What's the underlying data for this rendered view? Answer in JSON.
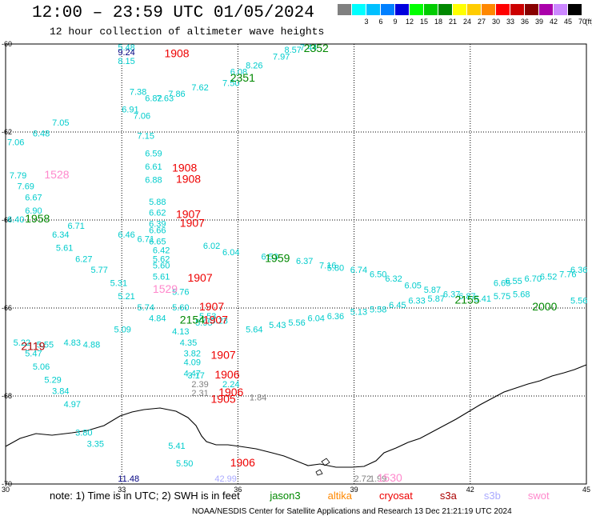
{
  "title": "12:00 – 23:59 UTC 01/05/2024",
  "subtitle": "12 hour collection of altimeter wave heights",
  "note": {
    "prefix": "note:  1) Time is in UTC; 2) SWH is in feet",
    "sats": [
      {
        "name": "jason3",
        "color": "#008800"
      },
      {
        "name": "altika",
        "color": "#ff8800"
      },
      {
        "name": "cryosat",
        "color": "#ee0000"
      },
      {
        "name": "s3a",
        "color": "#aa0000"
      },
      {
        "name": "s3b",
        "color": "#aaaaff"
      },
      {
        "name": "swot",
        "color": "#ff88cc"
      }
    ]
  },
  "footer": "NOAA/NESDIS Center for Satellite Applications and Research   13 Dec 21:21:19 UTC 2024",
  "legend": {
    "unit": "(ft)",
    "items": [
      {
        "label": "",
        "color": "#808080"
      },
      {
        "label": "3",
        "color": "#00ffff"
      },
      {
        "label": "6",
        "color": "#00c0ff"
      },
      {
        "label": "9",
        "color": "#0080ff"
      },
      {
        "label": "12",
        "color": "#0000dd"
      },
      {
        "label": "15",
        "color": "#00ff00"
      },
      {
        "label": "18",
        "color": "#00cc00"
      },
      {
        "label": "21",
        "color": "#008800"
      },
      {
        "label": "24",
        "color": "#ffff00"
      },
      {
        "label": "27",
        "color": "#ffcc00"
      },
      {
        "label": "30",
        "color": "#ff8800"
      },
      {
        "label": "33",
        "color": "#ff0000"
      },
      {
        "label": "36",
        "color": "#cc0000"
      },
      {
        "label": "39",
        "color": "#880000"
      },
      {
        "label": "42",
        "color": "#aa00aa"
      },
      {
        "label": "45",
        "color": "#cc88ff"
      },
      {
        "label": "70",
        "color": "#000000"
      }
    ]
  },
  "axes": {
    "lon_ticks": [
      "30",
      "33",
      "36",
      "39",
      "42",
      "45"
    ],
    "lat_ticks": [
      "-60",
      "-62",
      "-64",
      "-66",
      "-68",
      "-70"
    ]
  },
  "chart_data": {
    "type": "scatter",
    "x_range": [
      30,
      45
    ],
    "y_range": [
      -70,
      -60
    ],
    "swh_labels": [
      {
        "lon": 32.9,
        "lat": -60.08,
        "text": "5.48",
        "color": "#00cccc"
      },
      {
        "lon": 32.9,
        "lat": -60.25,
        "text": "9.24",
        "color": "#000080"
      },
      {
        "lon": 32.9,
        "lat": -60.45,
        "text": "8.15",
        "color": "#00cccc"
      },
      {
        "lon": 33.2,
        "lat": -61.15,
        "text": "7.38",
        "color": "#00cccc"
      },
      {
        "lon": 33.6,
        "lat": -61.3,
        "text": "6.82",
        "color": "#00cccc"
      },
      {
        "lon": 33.0,
        "lat": -61.55,
        "text": "6.91",
        "color": "#00cccc"
      },
      {
        "lon": 33.3,
        "lat": -61.7,
        "text": "7.06",
        "color": "#00cccc"
      },
      {
        "lon": 33.4,
        "lat": -62.15,
        "text": "7.15",
        "color": "#00cccc"
      },
      {
        "lon": 31.2,
        "lat": -61.85,
        "text": "7.05",
        "color": "#00cccc"
      },
      {
        "lon": 30.7,
        "lat": -62.1,
        "text": "6.48",
        "color": "#00cccc"
      },
      {
        "lon": 30.0,
        "lat": -62.3,
        "text": "7.06",
        "color": "#00cccc"
      },
      {
        "lon": 30.1,
        "lat": -63.05,
        "text": "7.79",
        "color": "#00cccc"
      },
      {
        "lon": 30.3,
        "lat": -63.3,
        "text": "7.69",
        "color": "#00cccc"
      },
      {
        "lon": 30.5,
        "lat": -63.55,
        "text": "6.67",
        "color": "#00cccc"
      },
      {
        "lon": 30.5,
        "lat": -63.85,
        "text": "6.90",
        "color": "#00cccc"
      },
      {
        "lon": 30.0,
        "lat": -64.05,
        "text": "6.40",
        "color": "#00cccc"
      },
      {
        "lon": 31.6,
        "lat": -64.2,
        "text": "6.71",
        "color": "#00cccc"
      },
      {
        "lon": 31.2,
        "lat": -64.4,
        "text": "6.34",
        "color": "#00cccc"
      },
      {
        "lon": 31.3,
        "lat": -64.7,
        "text": "5.61",
        "color": "#00cccc"
      },
      {
        "lon": 31.8,
        "lat": -64.95,
        "text": "6.27",
        "color": "#00cccc"
      },
      {
        "lon": 32.2,
        "lat": -65.2,
        "text": "5.77",
        "color": "#00cccc"
      },
      {
        "lon": 32.7,
        "lat": -65.5,
        "text": "5.31",
        "color": "#00cccc"
      },
      {
        "lon": 32.9,
        "lat": -64.4,
        "text": "6.46",
        "color": "#00cccc"
      },
      {
        "lon": 33.4,
        "lat": -64.5,
        "text": "6.71",
        "color": "#00cccc"
      },
      {
        "lon": 32.9,
        "lat": -65.8,
        "text": "5.21",
        "color": "#00cccc"
      },
      {
        "lon": 33.4,
        "lat": -66.05,
        "text": "5.74",
        "color": "#00cccc"
      },
      {
        "lon": 33.7,
        "lat": -66.3,
        "text": "4.84",
        "color": "#00cccc"
      },
      {
        "lon": 32.8,
        "lat": -66.55,
        "text": "5.09",
        "color": "#00cccc"
      },
      {
        "lon": 30.2,
        "lat": -66.85,
        "text": "5.22",
        "color": "#00cccc"
      },
      {
        "lon": 30.5,
        "lat": -67.1,
        "text": "5.47",
        "color": "#00cccc"
      },
      {
        "lon": 30.7,
        "lat": -67.4,
        "text": "5.06",
        "color": "#00cccc"
      },
      {
        "lon": 31.0,
        "lat": -67.7,
        "text": "5.29",
        "color": "#00cccc"
      },
      {
        "lon": 31.2,
        "lat": -67.95,
        "text": "3.84",
        "color": "#00cccc"
      },
      {
        "lon": 31.5,
        "lat": -68.25,
        "text": "4.97",
        "color": "#00cccc"
      },
      {
        "lon": 31.8,
        "lat": -68.9,
        "text": "3.80",
        "color": "#00cccc"
      },
      {
        "lon": 32.1,
        "lat": -69.15,
        "text": "3.35",
        "color": "#00cccc"
      },
      {
        "lon": 33.6,
        "lat": -62.55,
        "text": "6.59",
        "color": "#00cccc"
      },
      {
        "lon": 33.6,
        "lat": -62.85,
        "text": "6.61",
        "color": "#00cccc"
      },
      {
        "lon": 33.6,
        "lat": -63.15,
        "text": "6.88",
        "color": "#00cccc"
      },
      {
        "lon": 33.7,
        "lat": -63.65,
        "text": "5.88",
        "color": "#00cccc"
      },
      {
        "lon": 33.7,
        "lat": -63.9,
        "text": "6.62",
        "color": "#00cccc"
      },
      {
        "lon": 33.7,
        "lat": -64.15,
        "text": "6.39",
        "color": "#00cccc"
      },
      {
        "lon": 33.7,
        "lat": -64.3,
        "text": "6.66",
        "color": "#00cccc"
      },
      {
        "lon": 33.7,
        "lat": -64.55,
        "text": "6.65",
        "color": "#00cccc"
      },
      {
        "lon": 33.8,
        "lat": -64.75,
        "text": "6.42",
        "color": "#00cccc"
      },
      {
        "lon": 33.8,
        "lat": -64.95,
        "text": "5.62",
        "color": "#00cccc"
      },
      {
        "lon": 33.8,
        "lat": -65.1,
        "text": "5.60",
        "color": "#00cccc"
      },
      {
        "lon": 33.8,
        "lat": -65.35,
        "text": "5.61",
        "color": "#00cccc"
      },
      {
        "lon": 34.3,
        "lat": -65.7,
        "text": "5.76",
        "color": "#00cccc"
      },
      {
        "lon": 34.3,
        "lat": -66.05,
        "text": "5.60",
        "color": "#00cccc"
      },
      {
        "lon": 34.3,
        "lat": -66.6,
        "text": "4.13",
        "color": "#00cccc"
      },
      {
        "lon": 34.5,
        "lat": -66.85,
        "text": "4.35",
        "color": "#00cccc"
      },
      {
        "lon": 34.6,
        "lat": -67.1,
        "text": "3.82",
        "color": "#00cccc"
      },
      {
        "lon": 34.6,
        "lat": -67.3,
        "text": "4.09",
        "color": "#00cccc"
      },
      {
        "lon": 34.6,
        "lat": -67.55,
        "text": "4.47",
        "color": "#00cccc"
      },
      {
        "lon": 35.1,
        "lat": -64.65,
        "text": "6.02",
        "color": "#00cccc"
      },
      {
        "lon": 35.6,
        "lat": -64.8,
        "text": "6.04",
        "color": "#00cccc"
      },
      {
        "lon": 36.6,
        "lat": -64.9,
        "text": "6.53",
        "color": "#00cccc"
      },
      {
        "lon": 37.5,
        "lat": -65.0,
        "text": "6.37",
        "color": "#00cccc"
      },
      {
        "lon": 38.1,
        "lat": -65.1,
        "text": "7.16",
        "color": "#00cccc"
      },
      {
        "lon": 38.3,
        "lat": -65.15,
        "text": "5.80",
        "color": "#00cccc"
      },
      {
        "lon": 38.9,
        "lat": -65.2,
        "text": "6.74",
        "color": "#00cccc"
      },
      {
        "lon": 39.4,
        "lat": -65.3,
        "text": "6.50",
        "color": "#00cccc"
      },
      {
        "lon": 39.8,
        "lat": -65.4,
        "text": "6.32",
        "color": "#00cccc"
      },
      {
        "lon": 40.3,
        "lat": -65.55,
        "text": "6.05",
        "color": "#00cccc"
      },
      {
        "lon": 40.8,
        "lat": -65.65,
        "text": "5.87",
        "color": "#00cccc"
      },
      {
        "lon": 41.3,
        "lat": -65.75,
        "text": "6.37",
        "color": "#00cccc"
      },
      {
        "lon": 41.7,
        "lat": -65.8,
        "text": "6.87",
        "color": "#00cccc"
      },
      {
        "lon": 42.6,
        "lat": -65.5,
        "text": "6.65",
        "color": "#00cccc"
      },
      {
        "lon": 42.9,
        "lat": -65.45,
        "text": "6.55",
        "color": "#00cccc"
      },
      {
        "lon": 43.4,
        "lat": -65.4,
        "text": "6.70",
        "color": "#00cccc"
      },
      {
        "lon": 43.8,
        "lat": -65.35,
        "text": "6.52",
        "color": "#00cccc"
      },
      {
        "lon": 44.3,
        "lat": -65.3,
        "text": "7.76",
        "color": "#00cccc"
      },
      {
        "lon": 44.8,
        "lat": -65.2,
        "text": "6.36",
        "color": "#00cccc"
      },
      {
        "lon": 36.2,
        "lat": -66.55,
        "text": "5.64",
        "color": "#00cccc"
      },
      {
        "lon": 36.8,
        "lat": -66.45,
        "text": "5.43",
        "color": "#00cccc"
      },
      {
        "lon": 37.3,
        "lat": -66.4,
        "text": "5.56",
        "color": "#00cccc"
      },
      {
        "lon": 37.8,
        "lat": -66.3,
        "text": "6.04",
        "color": "#00cccc"
      },
      {
        "lon": 38.3,
        "lat": -66.25,
        "text": "6.36",
        "color": "#00cccc"
      },
      {
        "lon": 38.9,
        "lat": -66.15,
        "text": "5.13",
        "color": "#00cccc"
      },
      {
        "lon": 39.4,
        "lat": -66.1,
        "text": "5.58",
        "color": "#00cccc"
      },
      {
        "lon": 39.9,
        "lat": -66.0,
        "text": "6.45",
        "color": "#00cccc"
      },
      {
        "lon": 40.4,
        "lat": -65.9,
        "text": "6.33",
        "color": "#00cccc"
      },
      {
        "lon": 40.9,
        "lat": -65.85,
        "text": "5.87",
        "color": "#00cccc"
      },
      {
        "lon": 42.1,
        "lat": -65.85,
        "text": "5.41",
        "color": "#00cccc"
      },
      {
        "lon": 42.6,
        "lat": -65.8,
        "text": "5.75",
        "color": "#00cccc"
      },
      {
        "lon": 43.1,
        "lat": -65.75,
        "text": "5.68",
        "color": "#00cccc"
      },
      {
        "lon": 44.8,
        "lat": -65.9,
        "text": "5.56",
        "color": "#00cccc"
      },
      {
        "lon": 36.9,
        "lat": -60.35,
        "text": "7.97",
        "color": "#00cccc"
      },
      {
        "lon": 37.2,
        "lat": -60.2,
        "text": "8.57",
        "color": "#00cccc"
      },
      {
        "lon": 37.6,
        "lat": -60.05,
        "text": "7.44",
        "color": "#00cccc"
      },
      {
        "lon": 36.2,
        "lat": -60.55,
        "text": "8.26",
        "color": "#00cccc"
      },
      {
        "lon": 35.8,
        "lat": -60.7,
        "text": "6.08",
        "color": "#00cccc"
      },
      {
        "lon": 35.6,
        "lat": -60.95,
        "text": "7.50",
        "color": "#00cccc"
      },
      {
        "lon": 34.2,
        "lat": -61.2,
        "text": "7.86",
        "color": "#00cccc"
      },
      {
        "lon": 34.8,
        "lat": -61.05,
        "text": "7.62",
        "color": "#00cccc"
      },
      {
        "lon": 33.9,
        "lat": -61.3,
        "text": "7.63",
        "color": "#00cccc"
      },
      {
        "lon": 34.7,
        "lat": -67.6,
        "text": "3.17",
        "color": "#00cccc"
      },
      {
        "lon": 35.6,
        "lat": -67.8,
        "text": "2.24",
        "color": "#00cccc"
      },
      {
        "lon": 34.8,
        "lat": -68.0,
        "text": "2.31",
        "color": "#808080"
      },
      {
        "lon": 34.8,
        "lat": -67.8,
        "text": "2.39",
        "color": "#808080"
      },
      {
        "lon": 36.3,
        "lat": -68.1,
        "text": "1.84",
        "color": "#808080"
      },
      {
        "lon": 34.2,
        "lat": -69.2,
        "text": "5.41",
        "color": "#00cccc"
      },
      {
        "lon": 34.4,
        "lat": -69.6,
        "text": "5.50",
        "color": "#00cccc"
      },
      {
        "lon": 32.9,
        "lat": -70.6,
        "text": "11.48",
        "color": "#000080"
      },
      {
        "lon": 35.4,
        "lat": -72.0,
        "text": "42.99",
        "color": "#aaaaff"
      },
      {
        "lon": 39.0,
        "lat": -71.5,
        "text": "2.72",
        "color": "#808080"
      },
      {
        "lon": 39.4,
        "lat": -71.75,
        "text": "1.99",
        "color": "#808080"
      },
      {
        "lon": 30.8,
        "lat": -66.9,
        "text": "5.55",
        "color": "#00cccc"
      },
      {
        "lon": 31.5,
        "lat": -66.85,
        "text": "4.83",
        "color": "#00cccc"
      },
      {
        "lon": 32.0,
        "lat": -66.9,
        "text": "4.88",
        "color": "#00cccc"
      },
      {
        "lon": 35.0,
        "lat": -66.25,
        "text": "5.53",
        "color": "#00cccc"
      },
      {
        "lon": 35.3,
        "lat": -66.35,
        "text": "5.23",
        "color": "#00cccc"
      },
      {
        "lon": 34.9,
        "lat": -66.4,
        "text": "5.95",
        "color": "#00cccc"
      }
    ],
    "pass_labels": [
      {
        "lon": 34.1,
        "lat": -60.3,
        "text": "1908",
        "color": "#ee0000"
      },
      {
        "lon": 37.7,
        "lat": -60.1,
        "text": "2352",
        "color": "#008800"
      },
      {
        "lon": 35.8,
        "lat": -60.85,
        "text": "2351",
        "color": "#008800"
      },
      {
        "lon": 34.3,
        "lat": -62.9,
        "text": "1908",
        "color": "#ee0000"
      },
      {
        "lon": 34.4,
        "lat": -63.15,
        "text": "1908",
        "color": "#ee0000"
      },
      {
        "lon": 31.0,
        "lat": -63.05,
        "text": "1528",
        "color": "#ff88cc"
      },
      {
        "lon": 34.4,
        "lat": -63.95,
        "text": "1907",
        "color": "#ee0000"
      },
      {
        "lon": 34.5,
        "lat": -64.15,
        "text": "1907",
        "color": "#ee0000"
      },
      {
        "lon": 30.5,
        "lat": -64.05,
        "text": "1958",
        "color": "#008800"
      },
      {
        "lon": 36.7,
        "lat": -64.95,
        "text": "1959",
        "color": "#008800"
      },
      {
        "lon": 34.7,
        "lat": -65.4,
        "text": "1907",
        "color": "#ee0000"
      },
      {
        "lon": 33.8,
        "lat": -65.65,
        "text": "1529",
        "color": "#ff88cc"
      },
      {
        "lon": 35.0,
        "lat": -66.05,
        "text": "1907",
        "color": "#ee0000"
      },
      {
        "lon": 35.1,
        "lat": -66.35,
        "text": "1907",
        "color": "#ee0000"
      },
      {
        "lon": 34.5,
        "lat": -66.35,
        "text": "2154",
        "color": "#008800"
      },
      {
        "lon": 41.6,
        "lat": -65.9,
        "text": "2155",
        "color": "#008800"
      },
      {
        "lon": 43.6,
        "lat": -66.05,
        "text": "2000",
        "color": "#008800"
      },
      {
        "lon": 30.4,
        "lat": -66.95,
        "text": "2119",
        "color": "#aa0000"
      },
      {
        "lon": 35.3,
        "lat": -67.15,
        "text": "1907",
        "color": "#ee0000"
      },
      {
        "lon": 35.4,
        "lat": -67.6,
        "text": "1906",
        "color": "#ee0000"
      },
      {
        "lon": 35.5,
        "lat": -68.0,
        "text": "1906",
        "color": "#ee0000"
      },
      {
        "lon": 35.3,
        "lat": -68.15,
        "text": "1905",
        "color": "#ee0000"
      },
      {
        "lon": 35.8,
        "lat": -69.6,
        "text": "1906",
        "color": "#ee0000"
      },
      {
        "lon": 39.6,
        "lat": -71.5,
        "text": "1530",
        "color": "#ff88cc"
      }
    ]
  }
}
